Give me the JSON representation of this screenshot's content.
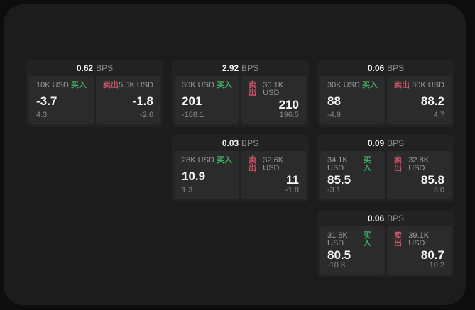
{
  "labels": {
    "bps_unit": "BPS",
    "buy": "买入",
    "sell": "卖出"
  },
  "colors": {
    "buy_accent": "#3fae62",
    "sell_accent": "#d05468",
    "panel_bg": "#1c1c1d",
    "card_bg": "#222223",
    "tile_bg": "#2b2b2c"
  },
  "cards": [
    {
      "bps": "0.62",
      "buy": {
        "size": "10K USD",
        "price": "-3.7",
        "delta": "4.3"
      },
      "sell": {
        "size": "5.5K USD",
        "price": "-1.8",
        "delta": "-2.6"
      }
    },
    {
      "bps": "2.92",
      "buy": {
        "size": "30K USD",
        "price": "201",
        "delta": "-188.1"
      },
      "sell": {
        "size": "30.1K USD",
        "price": "210",
        "delta": "196.5"
      }
    },
    {
      "bps": "0.06",
      "buy": {
        "size": "30K USD",
        "price": "88",
        "delta": "-4.9"
      },
      "sell": {
        "size": "30K USD",
        "price": "88.2",
        "delta": "4.7"
      }
    },
    {
      "bps": "0.03",
      "buy": {
        "size": "28K USD",
        "price": "10.9",
        "delta": "1.3"
      },
      "sell": {
        "size": "32.6K USD",
        "price": "11",
        "delta": "-1.8"
      }
    },
    {
      "bps": "0.09",
      "buy": {
        "size": "34.1K USD",
        "price": "85.5",
        "delta": "-3.1"
      },
      "sell": {
        "size": "32.8K USD",
        "price": "85.8",
        "delta": "3.0"
      }
    },
    {
      "bps": "0.06",
      "buy": {
        "size": "31.8K USD",
        "price": "80.5",
        "delta": "-10.8"
      },
      "sell": {
        "size": "39.1K USD",
        "price": "80.7",
        "delta": "10.2"
      }
    }
  ]
}
